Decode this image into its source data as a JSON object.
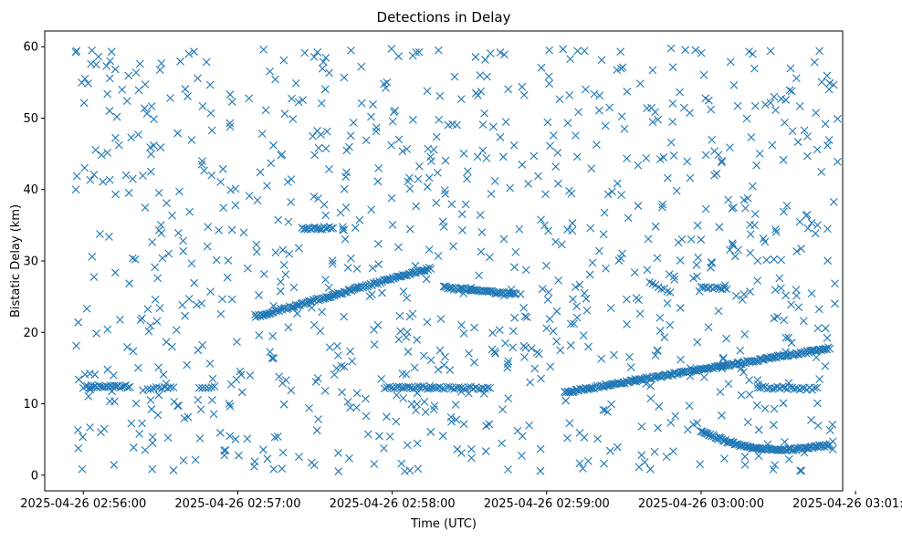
{
  "chart_data": {
    "type": "scatter",
    "title": "Detections in Delay",
    "xlabel": "Time (UTC)",
    "ylabel": "Bistatic Delay (km)",
    "x_unit": "time",
    "x_range": [
      "2025-04-26 02:55:45",
      "2025-04-26 03:00:55"
    ],
    "ylim": [
      -2.2,
      62.2
    ],
    "grid": false,
    "legend": "none",
    "marker": "x",
    "color": "#1f77b4",
    "x_ticks": [
      {
        "label": "2025-04-26 02:56:00",
        "value": "2025-04-26 02:56:00"
      },
      {
        "label": "2025-04-26 02:57:00",
        "value": "2025-04-26 02:57:00"
      },
      {
        "label": "2025-04-26 02:58:00",
        "value": "2025-04-26 02:58:00"
      },
      {
        "label": "2025-04-26 02:59:00",
        "value": "2025-04-26 02:59:00"
      },
      {
        "label": "2025-04-26 03:00:00",
        "value": "2025-04-26 03:00:00"
      },
      {
        "label": "2025-04-26 03:01:00",
        "value": "2025-04-26 03:01:00"
      }
    ],
    "y_ticks": [
      {
        "label": "0",
        "value": 0
      },
      {
        "label": "10",
        "value": 10
      },
      {
        "label": "20",
        "value": 20
      },
      {
        "label": "30",
        "value": 30
      },
      {
        "label": "40",
        "value": 40
      },
      {
        "label": "50",
        "value": 50
      },
      {
        "label": "60",
        "value": 60
      }
    ],
    "tracks": [
      {
        "from": [
          "2025-04-26 02:56:00",
          12.4
        ],
        "to": [
          "2025-04-26 02:56:18",
          12.4
        ],
        "count": 25
      },
      {
        "from": [
          "2025-04-26 02:56:25",
          12.2
        ],
        "to": [
          "2025-04-26 02:56:35",
          12.2
        ],
        "count": 10
      },
      {
        "from": [
          "2025-04-26 02:57:07",
          22.2
        ],
        "to": [
          "2025-04-26 02:58:15",
          29.0
        ],
        "count": 120
      },
      {
        "from": [
          "2025-04-26 02:57:25",
          34.6
        ],
        "to": [
          "2025-04-26 02:57:37",
          34.6
        ],
        "count": 18
      },
      {
        "from": [
          "2025-04-26 02:57:57",
          12.3
        ],
        "to": [
          "2025-04-26 02:58:38",
          12.2
        ],
        "count": 45
      },
      {
        "from": [
          "2025-04-26 02:58:20",
          26.3
        ],
        "to": [
          "2025-04-26 02:58:48",
          25.3
        ],
        "count": 50
      },
      {
        "from": [
          "2025-04-26 02:59:07",
          11.6
        ],
        "to": [
          "2025-04-26 03:00:50",
          17.8
        ],
        "count": 190
      },
      {
        "from": [
          "2025-04-26 03:00:00",
          6.2
        ],
        "to": [
          "2025-04-26 03:00:50",
          4.3
        ],
        "mid": [
          "2025-04-26 03:00:30",
          3.6
        ],
        "count": 100
      },
      {
        "from": [
          "2025-04-26 03:00:22",
          12.3
        ],
        "to": [
          "2025-04-26 03:00:45",
          12.1
        ],
        "count": 25
      },
      {
        "from": [
          "2025-04-26 03:00:00",
          26.4
        ],
        "to": [
          "2025-04-26 03:00:10",
          26.1
        ],
        "count": 12
      },
      {
        "from": [
          "2025-04-26 02:59:40",
          27.0
        ],
        "to": [
          "2025-04-26 02:59:48",
          25.6
        ],
        "count": 8
      },
      {
        "from": [
          "2025-04-26 02:56:45",
          12.3
        ],
        "to": [
          "2025-04-26 02:56:51",
          12.3
        ],
        "count": 6
      }
    ],
    "background_clutter": {
      "x_range": [
        "2025-04-26 02:55:57",
        "2025-04-26 03:00:52"
      ],
      "y_range": [
        0.5,
        59.8
      ],
      "count": 950
    },
    "points": [
      [
        "2025-04-26 02:56:03",
        57.6
      ],
      [
        "2025-04-26 02:56:05",
        57.5
      ],
      [
        "2025-04-26 02:56:09",
        57.3
      ],
      [
        "2025-04-26 02:56:11",
        59.3
      ],
      [
        "2025-04-26 02:56:22",
        57.6
      ],
      [
        "2025-04-26 02:56:41",
        59.0
      ],
      [
        "2025-04-26 02:56:43",
        59.3
      ],
      [
        "2025-04-26 02:57:10",
        59.6
      ],
      [
        "2025-04-26 02:57:48",
        57.2
      ],
      [
        "2025-04-26 02:58:18",
        59.5
      ],
      [
        "2025-04-26 02:58:42",
        59.2
      ],
      [
        "2025-04-26 02:59:01",
        59.5
      ],
      [
        "2025-04-26 02:59:12",
        59.4
      ],
      [
        "2025-04-26 03:00:27",
        59.4
      ],
      [
        "2025-04-26 03:00:46",
        59.4
      ],
      [
        "2025-04-26 02:56:35",
        0.7
      ],
      [
        "2025-04-26 02:58:10",
        0.9
      ],
      [
        "2025-04-26 02:58:45",
        0.8
      ],
      [
        "2025-04-26 03:00:28",
        0.8
      ],
      [
        "2025-04-26 02:55:58",
        21.4
      ],
      [
        "2025-04-26 02:56:30",
        45.9
      ],
      [
        "2025-04-26 03:00:53",
        43.9
      ],
      [
        "2025-04-26 03:00:53",
        49.9
      ]
    ]
  }
}
